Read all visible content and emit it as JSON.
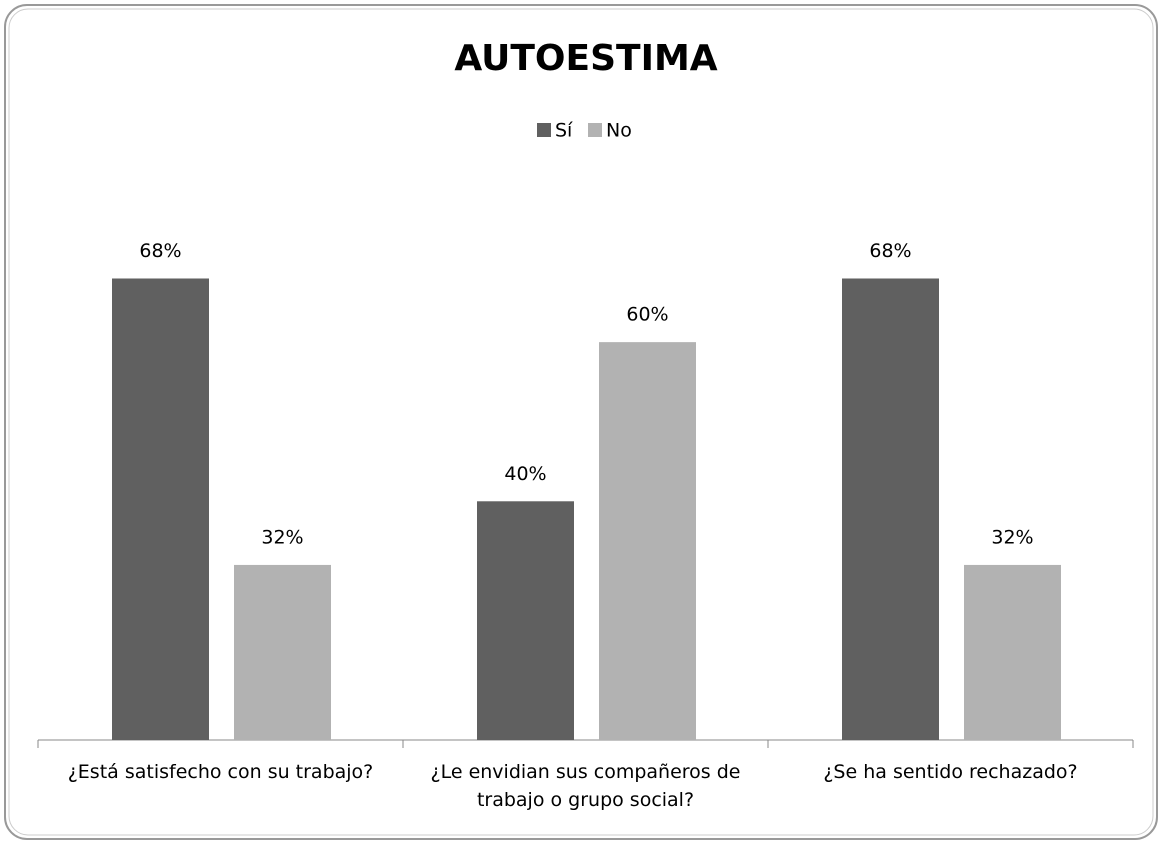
{
  "chart_data": {
    "type": "bar",
    "title": "AUTOESTIMA",
    "categories": [
      "¿Está satisfecho con su trabajo?",
      "¿Le envidian sus compañeros de trabajo o grupo social?",
      "¿Se ha sentido rechazado?"
    ],
    "series": [
      {
        "name": "Sí",
        "color": "#606060",
        "values": [
          68,
          40,
          68
        ],
        "value_labels": [
          "68%",
          "40%",
          "68%"
        ]
      },
      {
        "name": "No",
        "color": "#b2b2b2",
        "values": [
          32,
          60,
          32
        ],
        "value_labels": [
          "32%",
          "60%",
          "32%"
        ]
      }
    ],
    "ylim": [
      10,
      80
    ],
    "legend": "top"
  }
}
